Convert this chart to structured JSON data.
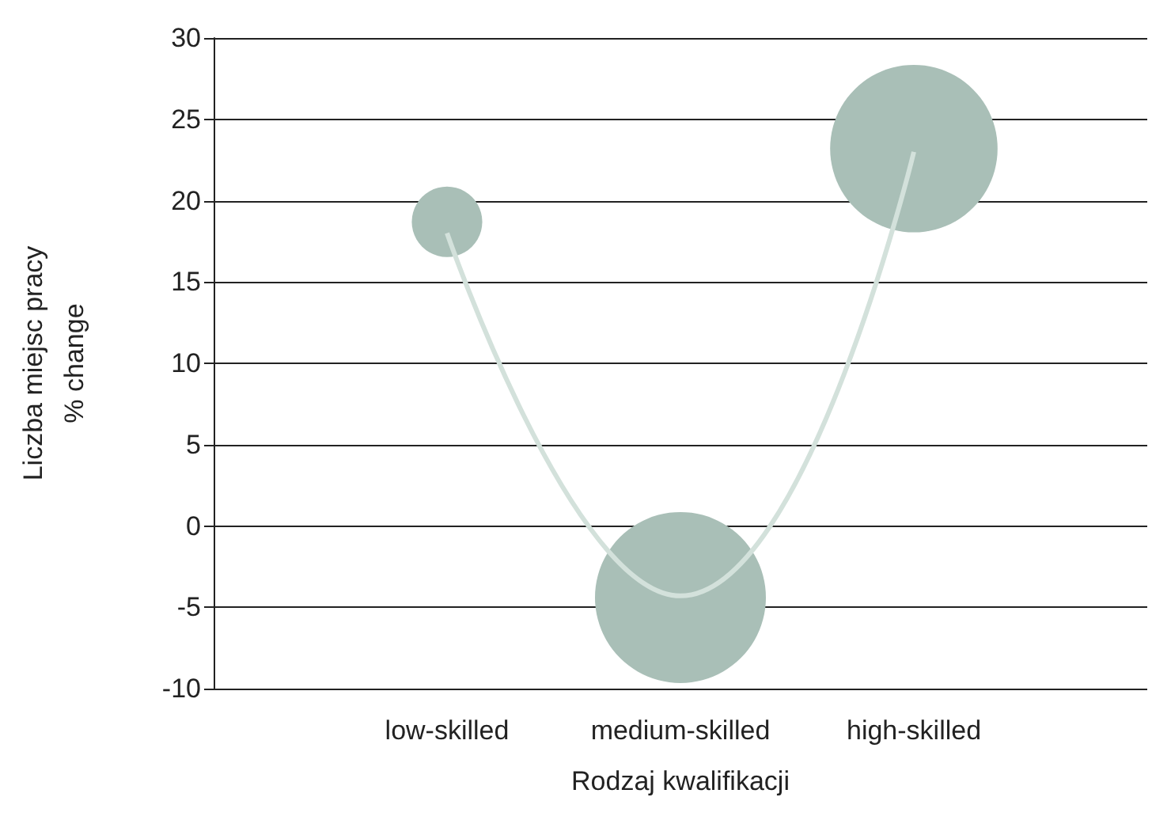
{
  "chart_data": {
    "type": "bubble",
    "xlabel": "Rodzaj kwalifikacji",
    "ylabel": "Liczba miejsc pracy\n% change",
    "categories": [
      "low-skilled",
      "medium-skilled",
      "high-skilled"
    ],
    "series": [
      {
        "color": "#a9bfb7",
        "values": [
          18.7,
          -4.4,
          23.2
        ],
        "sizes": [
          0.17,
          1,
          0.96
        ]
      },
      {
        "type": "line",
        "color": "#d3e1db",
        "values": [
          18,
          -4.3,
          23
        ],
        "marker": "none"
      }
    ],
    "ylim": [
      -10,
      30
    ],
    "yticks": [
      -10,
      -5,
      0,
      5,
      10,
      15,
      20,
      25,
      30
    ],
    "grid": "y"
  }
}
